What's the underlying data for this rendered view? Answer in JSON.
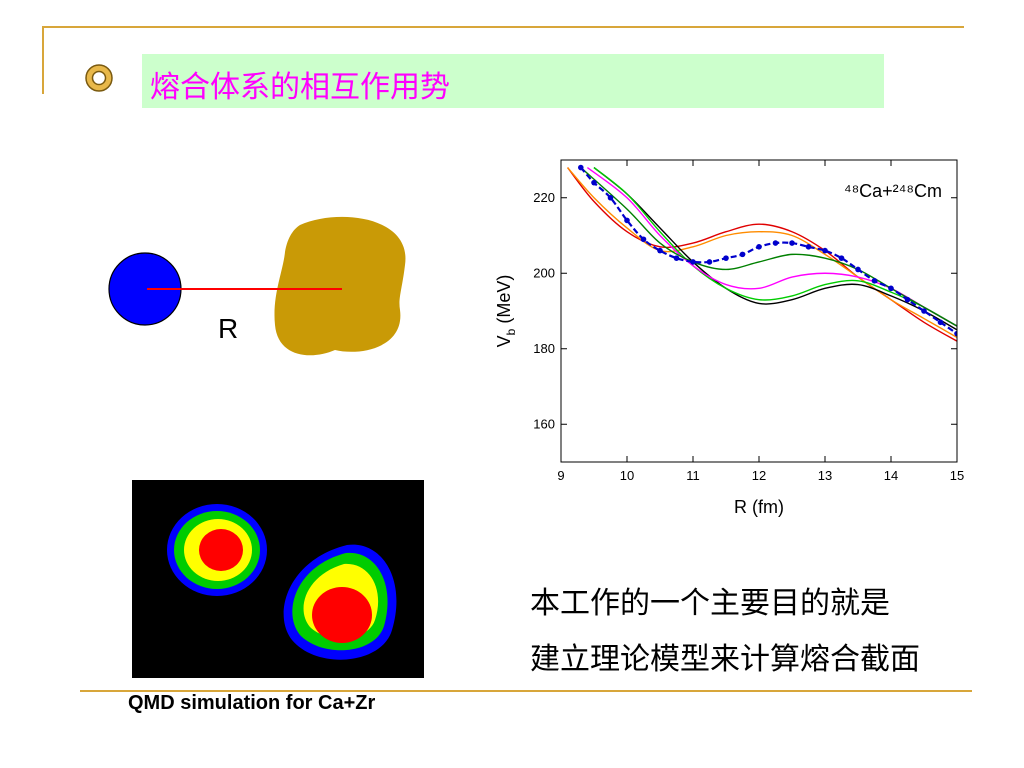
{
  "title": "熔合体系的相互作用势",
  "diagram": {
    "label": "R"
  },
  "chart_data": {
    "type": "line",
    "title": "",
    "annotation": "⁴⁸Ca+²⁴⁸Cm",
    "xlabel": "R (fm)",
    "ylabel": "V_b (MeV)",
    "xlim": [
      9,
      15
    ],
    "ylim": [
      150,
      230
    ],
    "xticks": [
      9,
      10,
      11,
      12,
      13,
      14,
      15
    ],
    "yticks": [
      160,
      180,
      200,
      220
    ],
    "grid": false,
    "series": [
      {
        "color": "#e00000",
        "style": "solid",
        "points": [
          [
            9.1,
            228
          ],
          [
            9.5,
            219
          ],
          [
            10,
            211
          ],
          [
            10.5,
            207
          ],
          [
            11,
            208
          ],
          [
            11.5,
            211
          ],
          [
            12,
            213
          ],
          [
            12.5,
            211
          ],
          [
            13,
            206
          ],
          [
            13.5,
            199
          ],
          [
            14,
            193
          ],
          [
            14.5,
            187
          ],
          [
            15,
            182
          ]
        ]
      },
      {
        "color": "#ff8c00",
        "style": "solid",
        "points": [
          [
            9.1,
            228
          ],
          [
            9.5,
            220
          ],
          [
            10,
            212
          ],
          [
            10.5,
            206
          ],
          [
            11,
            207
          ],
          [
            11.5,
            210
          ],
          [
            12,
            211
          ],
          [
            12.5,
            210
          ],
          [
            13,
            205
          ],
          [
            13.5,
            199
          ],
          [
            14,
            193
          ],
          [
            14.5,
            188
          ],
          [
            15,
            183
          ]
        ]
      },
      {
        "color": "#000000",
        "style": "solid",
        "points": [
          [
            9.5,
            228
          ],
          [
            10,
            221
          ],
          [
            10.5,
            212
          ],
          [
            11,
            203
          ],
          [
            11.5,
            196
          ],
          [
            12,
            192
          ],
          [
            12.5,
            193
          ],
          [
            13,
            196
          ],
          [
            13.5,
            197
          ],
          [
            14,
            194
          ],
          [
            14.5,
            190
          ],
          [
            15,
            185
          ]
        ]
      },
      {
        "color": "#00cc00",
        "style": "solid",
        "points": [
          [
            9.5,
            228
          ],
          [
            10,
            221
          ],
          [
            10.5,
            211
          ],
          [
            11,
            202
          ],
          [
            11.5,
            196
          ],
          [
            12,
            193
          ],
          [
            12.5,
            194
          ],
          [
            13,
            197
          ],
          [
            13.5,
            198
          ],
          [
            14,
            195
          ],
          [
            14.5,
            191
          ],
          [
            15,
            186
          ]
        ]
      },
      {
        "color": "#ff00ff",
        "style": "solid",
        "points": [
          [
            9.4,
            228
          ],
          [
            10,
            220
          ],
          [
            10.5,
            210
          ],
          [
            11,
            202
          ],
          [
            11.5,
            197
          ],
          [
            12,
            196
          ],
          [
            12.5,
            199
          ],
          [
            13,
            200
          ],
          [
            13.5,
            199
          ],
          [
            14,
            196
          ],
          [
            14.5,
            191
          ],
          [
            15,
            186
          ]
        ]
      },
      {
        "color": "#008000",
        "style": "solid",
        "points": [
          [
            9.3,
            228
          ],
          [
            10,
            217
          ],
          [
            10.5,
            208
          ],
          [
            11,
            203
          ],
          [
            11.5,
            201
          ],
          [
            12,
            203
          ],
          [
            12.5,
            205
          ],
          [
            13,
            204
          ],
          [
            13.5,
            201
          ],
          [
            14,
            196
          ],
          [
            14.5,
            191
          ],
          [
            15,
            186
          ]
        ]
      },
      {
        "color": "#0000cc",
        "style": "dashed-markers",
        "points": [
          [
            9.3,
            228
          ],
          [
            9.5,
            224
          ],
          [
            9.75,
            220
          ],
          [
            10,
            214
          ],
          [
            10.25,
            209
          ],
          [
            10.5,
            206
          ],
          [
            10.75,
            204
          ],
          [
            11,
            203
          ],
          [
            11.25,
            203
          ],
          [
            11.5,
            204
          ],
          [
            11.75,
            205
          ],
          [
            12,
            207
          ],
          [
            12.25,
            208
          ],
          [
            12.5,
            208
          ],
          [
            12.75,
            207
          ],
          [
            13,
            206
          ],
          [
            13.25,
            204
          ],
          [
            13.5,
            201
          ],
          [
            13.75,
            198
          ],
          [
            14,
            196
          ],
          [
            14.25,
            193
          ],
          [
            14.5,
            190
          ],
          [
            14.75,
            187
          ],
          [
            15,
            184
          ]
        ]
      }
    ]
  },
  "qmd": {
    "caption": "QMD simulation for Ca+Zr"
  },
  "note": {
    "line1": "本工作的一个主要目的就是",
    "line2": "建立理论模型来计算熔合截面"
  }
}
